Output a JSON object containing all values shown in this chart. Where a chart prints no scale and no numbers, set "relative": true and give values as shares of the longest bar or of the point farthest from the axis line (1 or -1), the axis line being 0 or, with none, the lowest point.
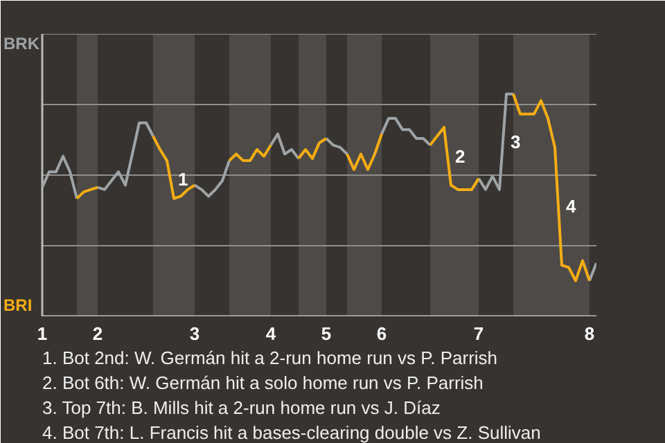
{
  "chart_data": {
    "type": "line",
    "relative": true,
    "categories": [
      "1",
      null,
      null,
      null,
      null,
      null,
      null,
      null,
      "2",
      null,
      null,
      null,
      null,
      null,
      null,
      null,
      null,
      null,
      null,
      null,
      null,
      null,
      "3",
      null,
      null,
      null,
      null,
      null,
      null,
      null,
      null,
      null,
      null,
      "4",
      null,
      null,
      null,
      null,
      null,
      null,
      null,
      "5",
      null,
      null,
      null,
      null,
      null,
      null,
      null,
      "6",
      null,
      null,
      null,
      null,
      null,
      null,
      null,
      null,
      null,
      null,
      null,
      null,
      null,
      "7",
      null,
      null,
      null,
      null,
      null,
      null,
      null,
      null,
      null,
      null,
      null,
      null,
      null,
      null,
      null,
      "8",
      null
    ],
    "series": [
      {
        "color": "#9ea3a6",
        "values": [
          0.58,
          0.65,
          0.65,
          0.72,
          0.65,
          0.53,
          null,
          null,
          0.58,
          0.57,
          0.61,
          0.65,
          0.59,
          0.73,
          0.87,
          0.87,
          0.81,
          null,
          null,
          null,
          null,
          null,
          0.59,
          0.57,
          0.54,
          0.57,
          0.61,
          0.7,
          null,
          null,
          null,
          null,
          null,
          0.77,
          0.82,
          0.73,
          0.75,
          0.71,
          null,
          null,
          null,
          0.8,
          0.77,
          0.76,
          0.73,
          null,
          null,
          null,
          null,
          0.82,
          0.89,
          0.89,
          0.84,
          0.84,
          0.8,
          0.8,
          0.77,
          null,
          null,
          null,
          null,
          null,
          null,
          0.62,
          0.57,
          0.63,
          0.57,
          1,
          1,
          null,
          null,
          null,
          null,
          null,
          null,
          null,
          null,
          null,
          null,
          0.16,
          0.24
        ]
      },
      {
        "color": "#f5ad14",
        "values": [
          null,
          null,
          null,
          null,
          null,
          0.53,
          0.56,
          0.57,
          0.58,
          null,
          null,
          null,
          null,
          null,
          null,
          null,
          0.81,
          0.75,
          0.7,
          0.53,
          0.54,
          0.57,
          0.59,
          null,
          null,
          null,
          null,
          0.7,
          0.73,
          0.7,
          0.7,
          0.75,
          0.72,
          0.77,
          null,
          null,
          null,
          0.71,
          0.75,
          0.71,
          0.78,
          0.8,
          null,
          null,
          0.73,
          0.66,
          0.73,
          0.66,
          0.73,
          0.82,
          null,
          null,
          null,
          null,
          null,
          null,
          0.77,
          0.81,
          0.85,
          0.59,
          0.57,
          0.57,
          0.57,
          0.62,
          null,
          null,
          null,
          null,
          1,
          0.91,
          0.91,
          0.91,
          0.97,
          0.89,
          0.76,
          0.23,
          0.22,
          0.16,
          0.25,
          0.16,
          null
        ]
      }
    ],
    "annotations": [
      "BRK",
      "BRI",
      "1",
      "2",
      "3",
      "4",
      "1. Bot 2nd: W. Germán hit a 2-run home run vs P. Parrish",
      "2. Bot 6th: W. Germán hit a solo home run vs P. Parrish",
      "3. Top 7th: B. Mills hit a 2-run home run vs J. Díaz",
      "4. Bot 7th: L. Francis hit a bases-clearing double vs Z. Sullivan"
    ]
  }
}
